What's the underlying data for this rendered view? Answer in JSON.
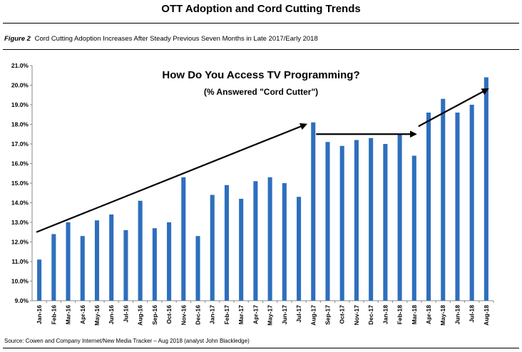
{
  "header": {
    "title": "OTT Adoption and Cord Cutting Trends"
  },
  "figure": {
    "label": "Figure 2",
    "caption": "Cord Cutting Adoption Increases After Steady Previous Seven Months in Late 2017/Early 2018"
  },
  "footer": {
    "source": "Source: Cowen and Company Internet/New Media Tracker – Aug 2018 (analyst John Blackledge)"
  },
  "chart_data": {
    "type": "bar",
    "title": "How Do You Access TV Programming?",
    "subtitle": "(% Answered \"Cord Cutter\")",
    "xlabel": "",
    "ylabel": "",
    "ylim": [
      9.0,
      21.0
    ],
    "yticks": [
      "9.0%",
      "10.0%",
      "11.0%",
      "12.0%",
      "13.0%",
      "14.0%",
      "15.0%",
      "16.0%",
      "17.0%",
      "18.0%",
      "19.0%",
      "20.0%",
      "21.0%"
    ],
    "bar_color": "#2e6fbd",
    "grid": false,
    "legend": "none",
    "categories": [
      "Jan-16",
      "Feb-16",
      "Mar-16",
      "Apr-16",
      "May-16",
      "Jun-16",
      "Jul-16",
      "Aug-16",
      "Sep-16",
      "Oct-16",
      "Nov-16",
      "Dec-16",
      "Jan-17",
      "Feb-17",
      "Mar-17",
      "Apr-17",
      "May-17",
      "Jun-17",
      "Jul-17",
      "Aug-17",
      "Sep-17",
      "Oct-17",
      "Nov-17",
      "Dec-17",
      "Jan-18",
      "Feb-18",
      "Mar-18",
      "Apr-18",
      "May-18",
      "Jun-18",
      "Jul-18",
      "Aug-18"
    ],
    "values": [
      11.1,
      12.4,
      13.0,
      12.3,
      13.1,
      13.4,
      12.6,
      14.1,
      12.7,
      13.0,
      15.3,
      12.3,
      14.4,
      14.9,
      14.2,
      15.1,
      15.3,
      15.0,
      14.3,
      18.1,
      17.1,
      16.9,
      17.2,
      17.3,
      17.0,
      17.5,
      16.4,
      18.6,
      19.3,
      18.6,
      19.0,
      20.4
    ],
    "annotations": [
      {
        "type": "arrow",
        "from": [
          "Jan-16",
          12.5
        ],
        "to": [
          "Aug-17",
          18.0
        ]
      },
      {
        "type": "arrow",
        "from": [
          "Aug-17",
          17.5
        ],
        "to": [
          "Mar-18",
          17.5
        ]
      },
      {
        "type": "arrow",
        "from": [
          "Mar-18",
          17.9
        ],
        "to": [
          "Aug-18",
          19.8
        ]
      }
    ]
  }
}
